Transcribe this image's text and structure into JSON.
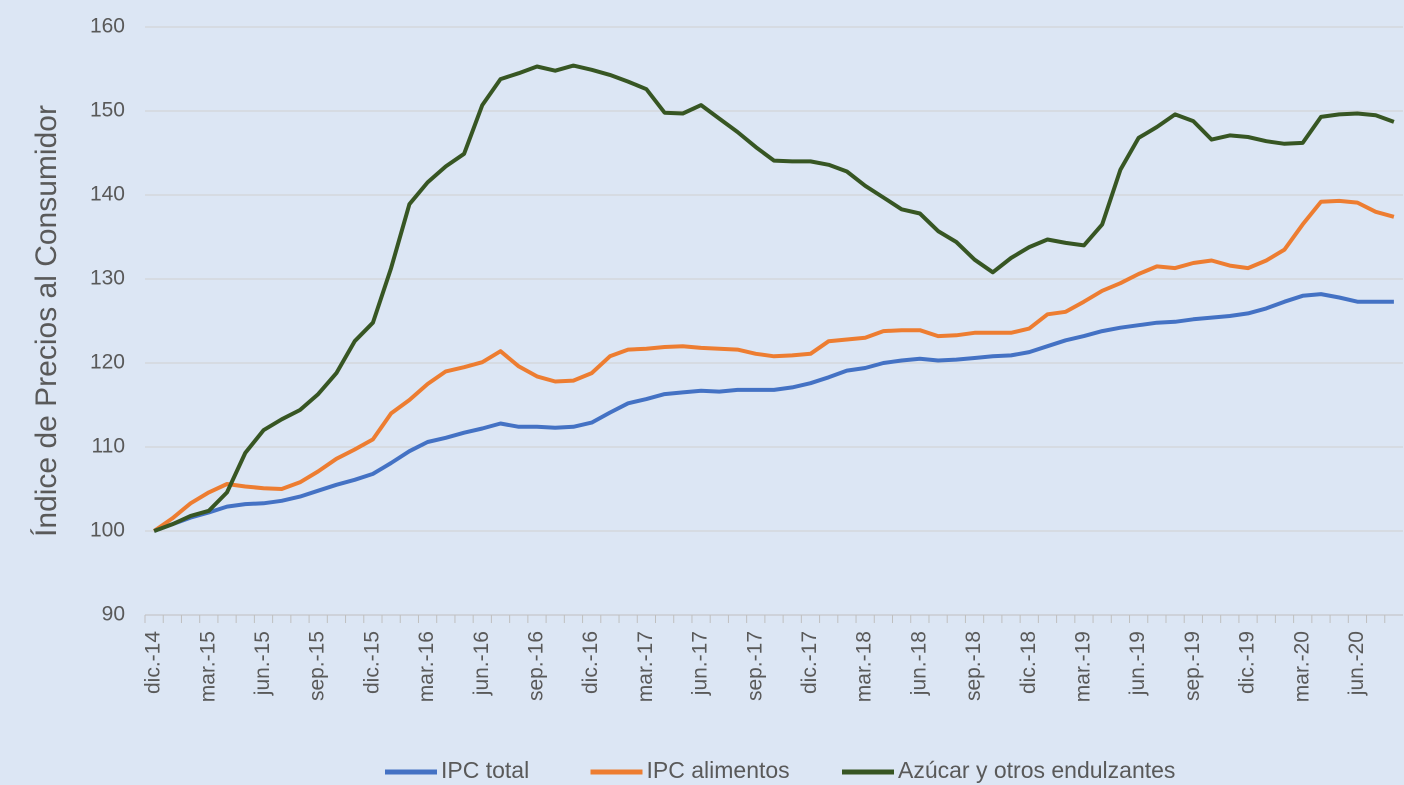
{
  "chart_data": {
    "type": "line",
    "y_label": "Índice de Precios al Consumidor",
    "categories": [
      "dic.-14",
      null,
      null,
      "mar.-15",
      null,
      null,
      "jun.-15",
      null,
      null,
      "sep.-15",
      null,
      null,
      "dic.-15",
      null,
      null,
      "mar.-16",
      null,
      null,
      "jun.-16",
      null,
      null,
      "sep.-16",
      null,
      null,
      "dic.-16",
      null,
      null,
      "mar.-17",
      null,
      null,
      "jun.-17",
      null,
      null,
      "sep.-17",
      null,
      null,
      "dic.-17",
      null,
      null,
      "mar.-18",
      null,
      null,
      "jun.-18",
      null,
      null,
      "sep.-18",
      null,
      null,
      "dic.-18",
      null,
      null,
      "mar.-19",
      null,
      null,
      "jun.-19",
      null,
      null,
      "sep.-19",
      null,
      null,
      "dic.-19",
      null,
      null,
      "mar.-20",
      null,
      null,
      "jun.-20",
      null,
      null
    ],
    "series": [
      {
        "name": "IPC total",
        "color": "#4472c4",
        "values": [
          100,
          100.8,
          101.6,
          102.2,
          102.9,
          103.2,
          103.3,
          103.6,
          104.1,
          104.8,
          105.5,
          106.1,
          106.8,
          108.1,
          109.5,
          110.6,
          111.1,
          111.7,
          112.2,
          112.8,
          112.4,
          112.4,
          112.3,
          112.4,
          112.9,
          114.1,
          115.2,
          115.7,
          116.3,
          116.5,
          116.7,
          116.6,
          116.8,
          116.8,
          116.8,
          117.1,
          117.6,
          118.3,
          119.1,
          119.4,
          120.0,
          120.3,
          120.5,
          120.3,
          120.4,
          120.6,
          120.8,
          120.9,
          121.3,
          122.0,
          122.7,
          123.2,
          123.8,
          124.2,
          124.5,
          124.8,
          124.9,
          125.2,
          125.4,
          125.6,
          125.9,
          126.5,
          127.3,
          128.0,
          128.2,
          127.8,
          127.3,
          127.3,
          127.3
        ]
      },
      {
        "name": "IPC alimentos",
        "color": "#ed7d31",
        "values": [
          100,
          101.5,
          103.3,
          104.6,
          105.6,
          105.3,
          105.1,
          105.0,
          105.8,
          107.1,
          108.6,
          109.7,
          110.9,
          114.0,
          115.6,
          117.5,
          119.0,
          119.5,
          120.1,
          121.4,
          119.6,
          118.4,
          117.8,
          117.9,
          118.8,
          120.8,
          121.6,
          121.7,
          121.9,
          122.0,
          121.8,
          121.7,
          121.6,
          121.1,
          120.8,
          120.9,
          121.1,
          122.6,
          122.8,
          123.0,
          123.8,
          123.9,
          123.9,
          123.2,
          123.3,
          123.6,
          123.6,
          123.6,
          124.1,
          125.8,
          126.1,
          127.3,
          128.6,
          129.5,
          130.6,
          131.5,
          131.3,
          131.9,
          132.2,
          131.6,
          131.3,
          132.2,
          133.5,
          136.5,
          139.2,
          139.3,
          139.1,
          138.0,
          137.4
        ]
      },
      {
        "name": "Azúcar y otros endulzantes",
        "color": "#375623",
        "values": [
          100,
          100.8,
          101.8,
          102.4,
          104.6,
          109.3,
          112.0,
          113.3,
          114.4,
          116.3,
          118.8,
          122.6,
          124.8,
          131.3,
          138.9,
          141.5,
          143.4,
          144.9,
          150.7,
          153.8,
          154.5,
          155.3,
          154.8,
          155.4,
          154.9,
          154.3,
          153.5,
          152.6,
          149.8,
          149.7,
          150.7,
          149.1,
          147.5,
          145.7,
          144.1,
          144.0,
          144.0,
          143.6,
          142.8,
          141.1,
          139.7,
          138.3,
          137.8,
          135.7,
          134.4,
          132.3,
          130.8,
          132.5,
          133.8,
          134.7,
          134.3,
          134.0,
          136.5,
          143.0,
          146.8,
          148.1,
          149.6,
          148.8,
          146.6,
          147.1,
          146.9,
          146.4,
          146.1,
          146.2,
          149.3,
          149.6,
          149.7,
          149.5,
          148.7
        ]
      }
    ],
    "ylim": [
      90,
      160
    ],
    "yticks": [
      90,
      100,
      110,
      120,
      130,
      140,
      150,
      160
    ],
    "grid": true,
    "legend": "bottom"
  }
}
